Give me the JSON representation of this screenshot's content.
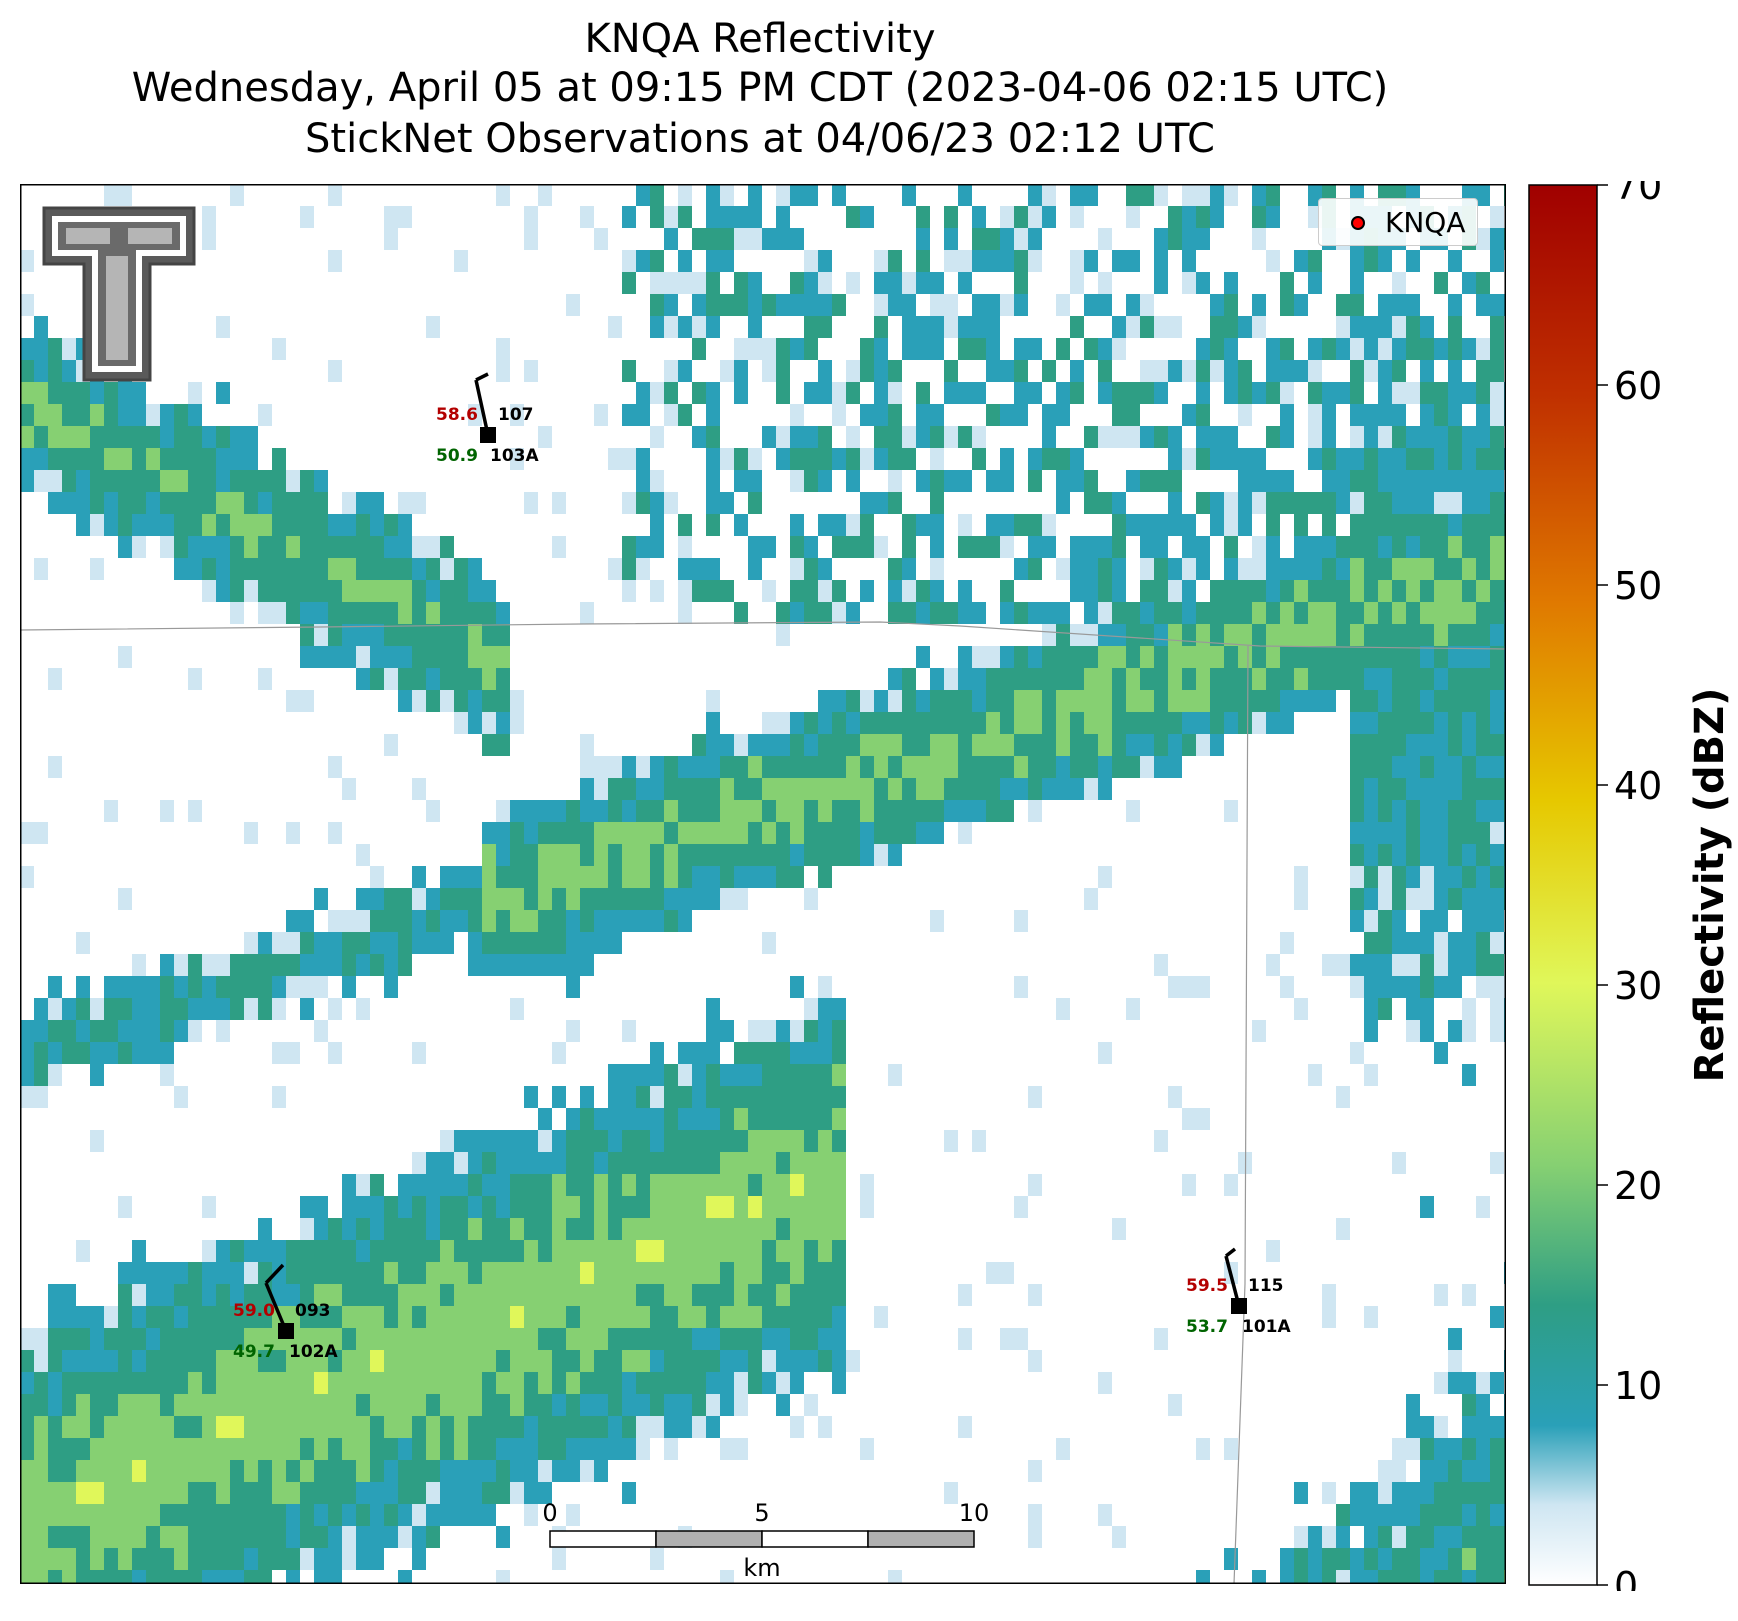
{
  "title": {
    "line1": "KNQA Reflectivity",
    "line2": "Wednesday, April 05 at 09:15 PM CDT (2023-04-06 02:15 UTC)",
    "line3": "StickNet Observations at 04/06/23 02:12 UTC"
  },
  "legend": {
    "label": "KNQA",
    "marker_color": "#ff0000"
  },
  "colorbar": {
    "label": "Reflectivity (dBZ)",
    "min": 0,
    "max": 70,
    "ticks": [
      "0",
      "10",
      "20",
      "30",
      "40",
      "50",
      "60",
      "70"
    ]
  },
  "scale_bar": {
    "ticks": [
      "0",
      "5",
      "10"
    ],
    "unit": "km"
  },
  "stations": [
    {
      "temp": "58.6",
      "dew": "50.9",
      "dir": "107",
      "id": "103A"
    },
    {
      "temp": "59.0",
      "dew": "49.7",
      "dir": "093",
      "id": "102A"
    },
    {
      "temp": "59.5",
      "dew": "53.7",
      "dir": "115",
      "id": "101A"
    }
  ],
  "colors": {
    "temp": "#b30000",
    "dew": "#006400",
    "cmap": [
      "#ffffff",
      "#cfe6f2",
      "#2aa0b8",
      "#2e9e84",
      "#86d072",
      "#e0f75a",
      "#e6c800",
      "#e07a00",
      "#c03000",
      "#a00000"
    ]
  }
}
